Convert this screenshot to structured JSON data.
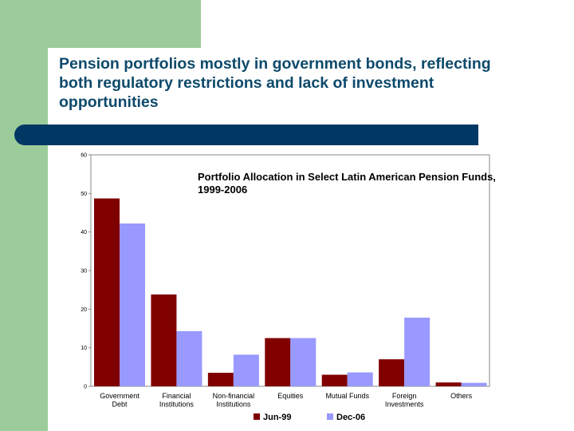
{
  "slide": {
    "title": "Pension portfolios mostly in government bonds, reflecting\nboth regulatory restrictions and lack of investment\nopportunities",
    "colors": {
      "green": "#9dcc9b",
      "bar": "#003865",
      "title_text": "#0e4a6b"
    }
  },
  "chart_data": {
    "type": "bar",
    "title": "Portfolio Allocation in Select Latin American Pension Funds,\n1999-2006",
    "categories": [
      "Government\nDebt",
      "Financial\nInstitutions",
      "Non-financial\nInstitutions",
      "Equities",
      "Mutual Funds",
      "Foreign\nInvestments",
      "Others"
    ],
    "series": [
      {
        "name": "Jun-99",
        "color": "#800000",
        "values": [
          48.7,
          23.8,
          3.5,
          12.5,
          3.0,
          7.0,
          1.0
        ]
      },
      {
        "name": "Dec-06",
        "color": "#9999ff",
        "values": [
          42.2,
          14.3,
          8.2,
          12.5,
          3.6,
          17.8,
          0.9
        ]
      }
    ],
    "ylim": [
      0,
      60
    ],
    "yticks": [
      0,
      10,
      20,
      30,
      40,
      50,
      60
    ],
    "legend_position": "bottom",
    "grid": false
  }
}
